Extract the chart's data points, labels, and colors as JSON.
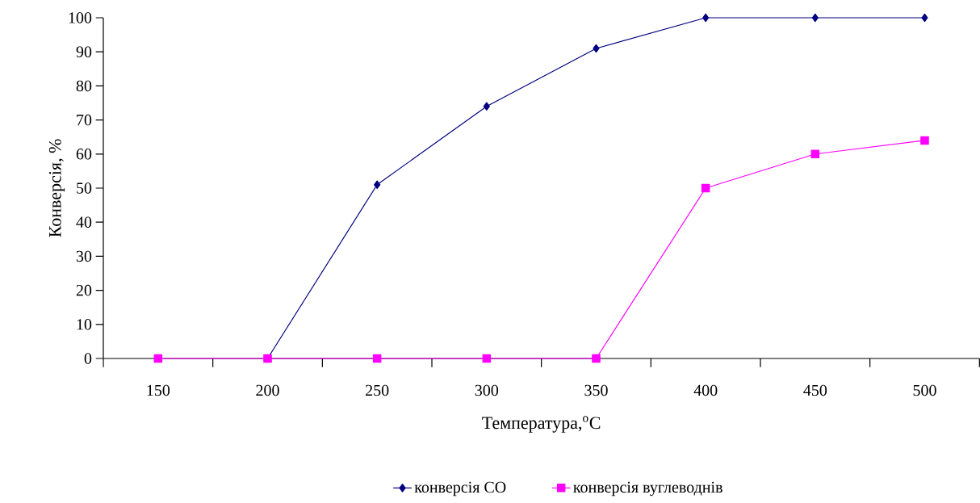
{
  "chart_data": {
    "type": "line",
    "xlabel": "Температура,$^{o}$C",
    "ylabel": "Конверсія, %",
    "categories": [
      "150",
      "200",
      "250",
      "300",
      "350",
      "400",
      "450",
      "500"
    ],
    "series": [
      {
        "name": "конверсія CO",
        "color": "#000080",
        "marker": "diamond",
        "values": [
          null,
          0,
          51,
          74,
          91,
          100,
          100,
          100
        ]
      },
      {
        "name": "конверсія вуглеводнів",
        "color": "#ff00ff",
        "marker": "square",
        "values": [
          0,
          0,
          0,
          0,
          0,
          50,
          60,
          64
        ]
      }
    ],
    "ylim": [
      0,
      100
    ],
    "yticks": [
      0,
      10,
      20,
      30,
      40,
      50,
      60,
      70,
      80,
      90,
      100
    ],
    "legend": "bottom",
    "line_style": "solid"
  }
}
